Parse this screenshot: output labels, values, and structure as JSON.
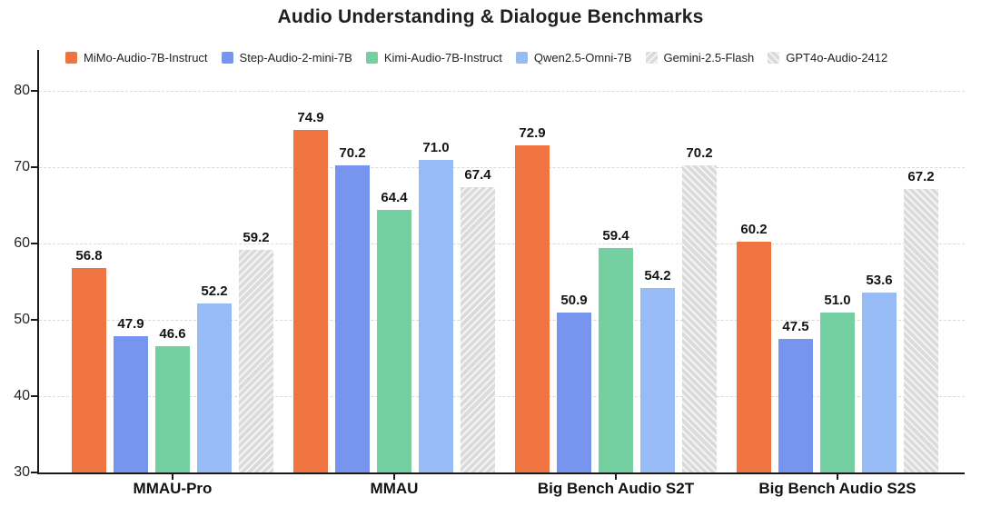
{
  "title": "Audio Understanding & Dialogue Benchmarks",
  "colors": {
    "axis": "#1a1a1a",
    "grid": "#d9d9d9",
    "hatch_base": "#dadada",
    "hatch_stripe": "#f5f5f5"
  },
  "chart_data": {
    "type": "bar",
    "title": "Audio Understanding & Dialogue Benchmarks",
    "categories": [
      "MMAU-Pro",
      "MMAU",
      "Big Bench Audio S2T",
      "Big Bench Audio S2S"
    ],
    "series": [
      {
        "name": "MiMo-Audio-7B-Instruct",
        "style": "solid",
        "color": "#ef7440",
        "values": [
          56.8,
          74.9,
          72.9,
          60.2
        ]
      },
      {
        "name": "Step-Audio-2-mini-7B",
        "style": "solid",
        "color": "#7795ee",
        "values": [
          47.9,
          70.2,
          50.9,
          47.5
        ]
      },
      {
        "name": "Kimi-Audio-7B-Instruct",
        "style": "solid",
        "color": "#74d0a0",
        "values": [
          46.6,
          64.4,
          59.4,
          51.0
        ]
      },
      {
        "name": "Qwen2.5-Omni-7B",
        "style": "solid",
        "color": "#97bcf5",
        "values": [
          52.2,
          71.0,
          54.2,
          53.6
        ]
      },
      {
        "name": "Gemini-2.5-Flash",
        "style": "hatch",
        "hatch": "/",
        "values": [
          59.2,
          67.4,
          null,
          null
        ]
      },
      {
        "name": "GPT4o-Audio-2412",
        "style": "hatch",
        "hatch": "\\",
        "values": [
          null,
          null,
          70.2,
          67.2
        ]
      }
    ],
    "ylim": [
      30,
      84
    ],
    "yticks": [
      30,
      40,
      50,
      60,
      70,
      80
    ],
    "grid": "horizontal-dashed",
    "gridline_ticks": [
      40,
      50,
      60,
      70,
      80
    ],
    "legend_position": "top-inside",
    "value_labels": true,
    "value_label_decimals": 1
  }
}
